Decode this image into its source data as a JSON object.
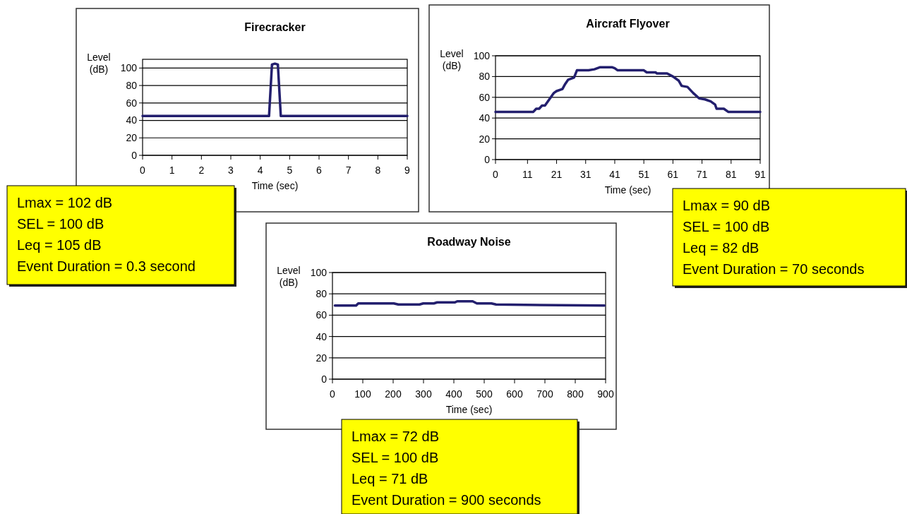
{
  "chart_data": [
    {
      "type": "line",
      "title": "Firecracker",
      "xlabel": "Time (sec)",
      "ylabel": "Level (dB)",
      "xlim": [
        0,
        9
      ],
      "xticks": [
        0,
        1,
        2,
        3,
        4,
        5,
        6,
        7,
        8,
        9
      ],
      "ylim": [
        0,
        110
      ],
      "yticks": [
        0,
        20,
        40,
        60,
        80,
        100
      ],
      "grid": "y",
      "series": [
        {
          "color": "#231f6e",
          "x": [
            0,
            4.3,
            4.4,
            4.5,
            4.6,
            4.7,
            9
          ],
          "values": [
            45,
            45,
            104,
            105,
            104,
            45,
            45
          ]
        }
      ],
      "annotations": [
        "Lmax = 102 dB",
        "SEL = 100 dB",
        "Leq = 105 dB",
        "Event Duration = 0.3 second"
      ]
    },
    {
      "type": "line",
      "title": "Aircraft Flyover",
      "xlabel": "Time (sec)",
      "ylabel": "Level (dB)",
      "xlim": [
        0,
        91
      ],
      "xticks": [
        0,
        11,
        21,
        31,
        41,
        51,
        61,
        71,
        81,
        91
      ],
      "ylim": [
        0,
        100
      ],
      "yticks": [
        0,
        20,
        40,
        60,
        80,
        100
      ],
      "grid": "y",
      "series": [
        {
          "color": "#231f6e",
          "x": [
            0,
            13,
            14,
            15,
            16,
            17,
            20,
            21,
            23,
            24,
            25,
            27,
            28,
            32,
            34,
            36,
            40,
            41,
            42,
            51,
            52,
            55,
            55.5,
            59,
            61,
            63,
            64,
            66,
            68,
            70,
            72,
            74,
            75.5,
            76,
            78.5,
            80,
            91
          ],
          "values": [
            46,
            46,
            49,
            49,
            52,
            52,
            64,
            66,
            68,
            73,
            77,
            79,
            86,
            86,
            87,
            89,
            89,
            88,
            86,
            86,
            84,
            84,
            83,
            83,
            80,
            76,
            71,
            70,
            64,
            59,
            58,
            56,
            53,
            49,
            49,
            46,
            46
          ]
        }
      ],
      "annotations": [
        "Lmax = 90 dB",
        "SEL = 100 dB",
        "Leq = 82 dB",
        "Event Duration = 70 seconds"
      ]
    },
    {
      "type": "line",
      "title": "Roadway Noise",
      "xlabel": "Time (sec)",
      "ylabel": "Level (dB)",
      "xlim": [
        0,
        900
      ],
      "xticks": [
        0,
        100,
        200,
        300,
        400,
        500,
        600,
        700,
        800,
        900
      ],
      "ylim": [
        0,
        100
      ],
      "yticks": [
        0,
        20,
        40,
        60,
        80,
        100
      ],
      "grid": "y",
      "series": [
        {
          "color": "#231f6e",
          "x": [
            8,
            78,
            85,
            202,
            217,
            287,
            299,
            334,
            345,
            403,
            411,
            462,
            476,
            524,
            539,
            896
          ],
          "values": [
            69,
            69,
            71,
            71,
            70,
            70,
            71,
            71,
            72,
            72,
            73,
            73,
            71,
            71,
            70,
            69
          ]
        }
      ],
      "annotations": [
        "Lmax = 72 dB",
        "SEL = 100 dB",
        "Leq = 71 dB",
        "Event Duration = 900 seconds"
      ]
    }
  ]
}
